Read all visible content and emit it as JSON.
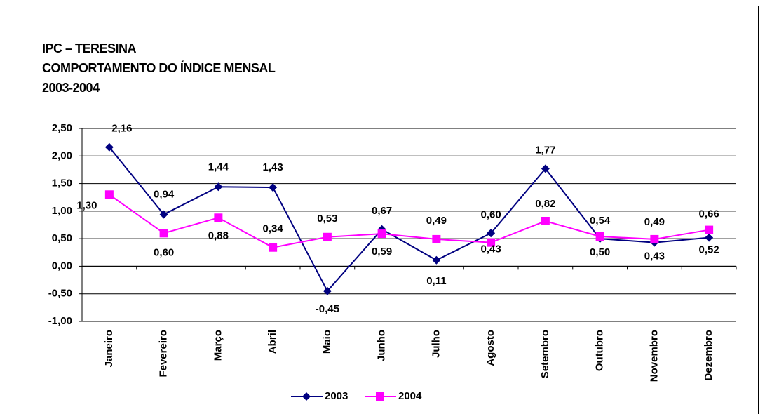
{
  "chart_data": {
    "type": "line",
    "title": [
      "IPC – TERESINA",
      "COMPORTAMENTO DO ÍNDICE MENSAL",
      "2003-2004"
    ],
    "categories": [
      "Janeiro",
      "Fevereiro",
      "Março",
      "Abril",
      "Maio",
      "Junho",
      "Julho",
      "Agosto",
      "Setembro",
      "Outubro",
      "Novembro",
      "Dezembro"
    ],
    "series": [
      {
        "name": "2003",
        "color": "#000080",
        "marker": "diamond",
        "values": [
          2.16,
          0.94,
          1.44,
          1.43,
          -0.45,
          0.67,
          0.11,
          0.6,
          1.77,
          0.5,
          0.43,
          0.52
        ],
        "value_labels": [
          "2,16",
          "0,94",
          "1,44",
          "1,43",
          "-0,45",
          "0,67",
          "0,11",
          "0,60",
          "1,77",
          "0,50",
          "0,43",
          "0,52"
        ]
      },
      {
        "name": "2004",
        "color": "#ff00ff",
        "marker": "square",
        "values": [
          1.3,
          0.6,
          0.88,
          0.34,
          0.53,
          0.59,
          0.49,
          0.43,
          0.82,
          0.54,
          0.49,
          0.66
        ],
        "value_labels": [
          "1,30",
          "0,60",
          "0,88",
          "0,34",
          "0,53",
          "0,59",
          "0,49",
          "0,43",
          "0,82",
          "0,54",
          "0,49",
          "0,66"
        ]
      }
    ],
    "ylim": [
      -1,
      2.5
    ],
    "yticks": [
      {
        "value": -1,
        "label": "-1,00"
      },
      {
        "value": -0.5,
        "label": "-0,50"
      },
      {
        "value": 0,
        "label": "0,00"
      },
      {
        "value": 0.5,
        "label": "0,50"
      },
      {
        "value": 1,
        "label": "1,00"
      },
      {
        "value": 1.5,
        "label": "1,50"
      },
      {
        "value": 2,
        "label": "2,00"
      },
      {
        "value": 2.5,
        "label": "2,50"
      }
    ],
    "grid": true,
    "legend": "bottom"
  }
}
